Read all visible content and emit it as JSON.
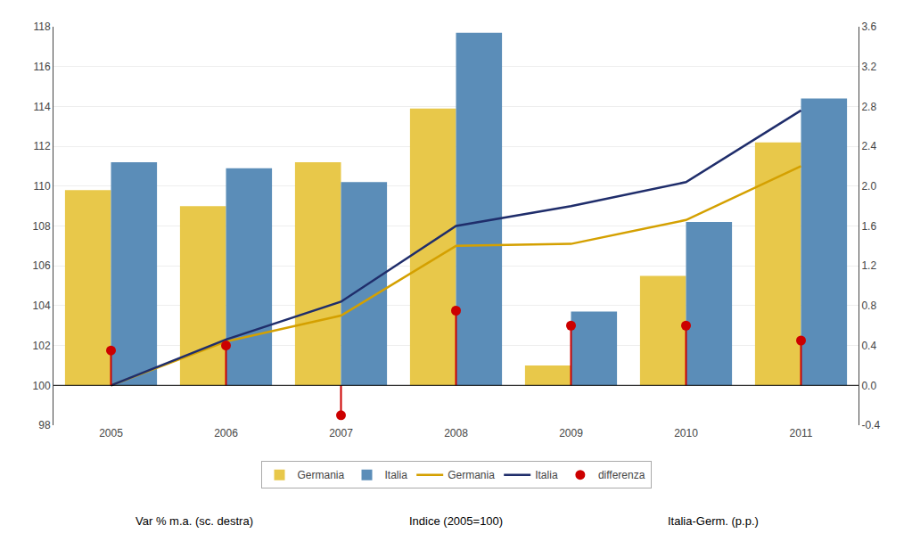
{
  "chart_data": {
    "type": "bar",
    "categories": [
      "2005",
      "2006",
      "2007",
      "2008",
      "2009",
      "2010",
      "2011"
    ],
    "base": 100,
    "series": [
      {
        "name": "Germania",
        "type": "bar",
        "color": "#E8C84A",
        "values": [
          109.8,
          109.0,
          111.2,
          113.9,
          101.0,
          105.5,
          112.2
        ]
      },
      {
        "name": "Italia",
        "type": "bar",
        "color": "#5B8DB8",
        "values": [
          111.2,
          110.9,
          110.2,
          117.7,
          103.7,
          108.2,
          114.4
        ]
      },
      {
        "name": "Germania",
        "type": "line",
        "color": "#D4A000",
        "values": [
          100.0,
          102.2,
          103.5,
          107.0,
          107.1,
          108.3,
          111.0
        ]
      },
      {
        "name": "Italia",
        "type": "line",
        "color": "#1F2D6B",
        "values": [
          100.0,
          102.3,
          104.2,
          108.0,
          109.0,
          110.2,
          113.8
        ]
      },
      {
        "name": "differenza",
        "type": "lollipop",
        "color": "#CC0000",
        "axis": "y2",
        "values": [
          0.35,
          0.4,
          -0.3,
          0.75,
          0.6,
          0.6,
          0.45
        ]
      }
    ],
    "ylim": [
      98,
      118
    ],
    "yticks": [
      98,
      100,
      102,
      104,
      106,
      108,
      110,
      112,
      114,
      116,
      118
    ],
    "y2lim": [
      -0.4,
      3.6
    ],
    "y2ticks": [
      -0.4,
      {
        "value": 0,
        "label": "0.0"
      },
      0.4,
      0.8,
      1.2,
      1.6,
      {
        "value": 2,
        "label": "2.0"
      },
      2.4,
      2.8,
      3.2,
      3.6
    ],
    "annotations": [
      "Var % m.a. (sc. destra)",
      "Indice (2005=100)",
      "Italia-Germ. (p.p.)"
    ],
    "grid": true,
    "legend": "bottom"
  }
}
